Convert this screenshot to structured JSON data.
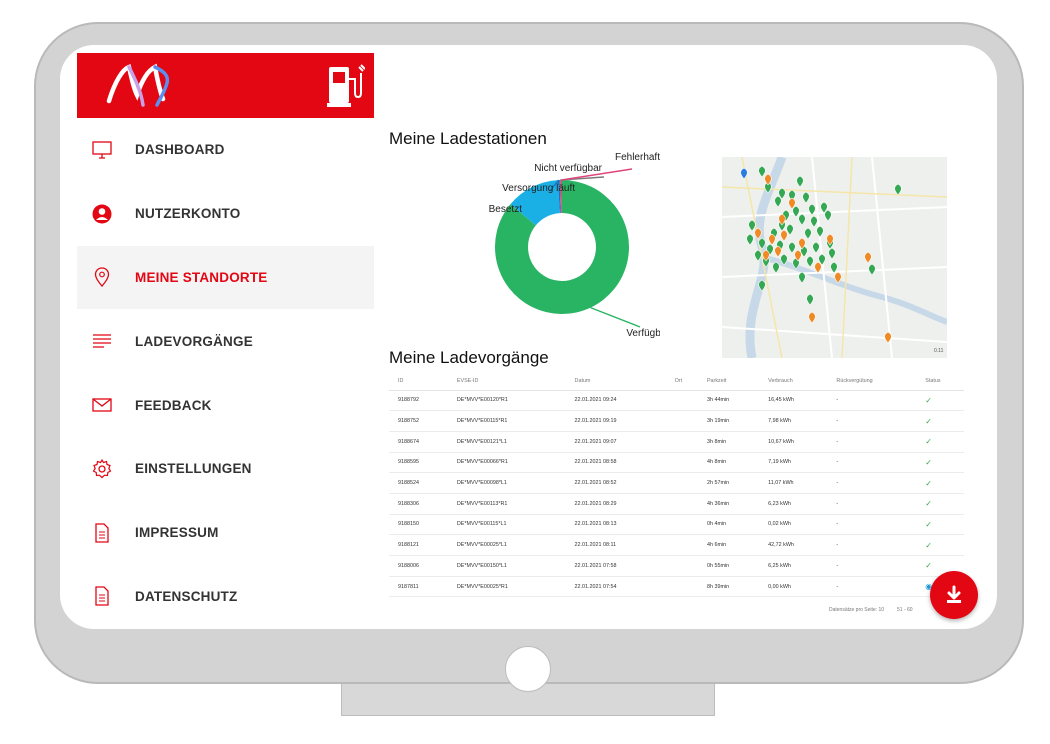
{
  "nav": [
    {
      "label": "DASHBOARD",
      "icon": "monitor-icon",
      "active": false
    },
    {
      "label": "NUTZERKONTO",
      "icon": "user-icon",
      "active": false
    },
    {
      "label": "MEINE STANDORTE",
      "icon": "location-pin-icon",
      "active": true
    },
    {
      "label": "LADEVORGÄNGE",
      "icon": "list-icon",
      "active": false
    },
    {
      "label": "FEEDBACK",
      "icon": "mail-icon",
      "active": false
    },
    {
      "label": "EINSTELLUNGEN",
      "icon": "gear-icon",
      "active": false
    },
    {
      "label": "IMPRESSUM",
      "icon": "document-icon",
      "active": false
    },
    {
      "label": "DATENSCHUTZ",
      "icon": "document-icon",
      "active": false
    }
  ],
  "stations": {
    "title": "Meine Ladestationen",
    "chart_data": {
      "type": "pie",
      "donut": true,
      "slices": [
        {
          "label": "Verfügbar",
          "value": 86,
          "color": "#28b463"
        },
        {
          "label": "Besetzt",
          "value": 13,
          "color": "#1ab0e6"
        },
        {
          "label": "Versorgung läuft",
          "value": 0.4,
          "color": "#1a73c8"
        },
        {
          "label": "Nicht verfügbar",
          "value": 0.3,
          "color": "#7a7a7a"
        },
        {
          "label": "Fehlerhaft",
          "value": 0.3,
          "color": "#e0457b"
        }
      ]
    }
  },
  "map": {
    "pins_green": 42,
    "pins_orange": 16,
    "pins_blue": 1,
    "colors": {
      "green": "#34a853",
      "orange": "#f08a24",
      "blue": "#2a7de1",
      "water": "#c7d9e8",
      "land": "#eef0ee"
    },
    "scale_label": "0.11"
  },
  "sessions": {
    "title": "Meine Ladevorgänge",
    "columns": [
      "ID",
      "EVSE-ID",
      "Datum",
      "Ort",
      "Parkzeit",
      "Verbrauch",
      "Rückvergütung",
      "Status"
    ],
    "rows": [
      {
        "id": "9188792",
        "evse": "DE*MVV*E00120*R1",
        "date": "22.01.2021 09:24",
        "place": "",
        "park": "3h 44min",
        "usage": "16,45 kWh",
        "refund": "-",
        "status": "ok"
      },
      {
        "id": "9188752",
        "evse": "DE*MVV*E00115*R1",
        "date": "22.01.2021 09:19",
        "place": "",
        "park": "3h 19min",
        "usage": "7,98 kWh",
        "refund": "-",
        "status": "ok"
      },
      {
        "id": "9188674",
        "evse": "DE*MVV*E00121*L1",
        "date": "22.01.2021 09:07",
        "place": "",
        "park": "3h 8min",
        "usage": "10,67 kWh",
        "refund": "-",
        "status": "ok"
      },
      {
        "id": "9188595",
        "evse": "DE*MVV*E00066*R1",
        "date": "22.01.2021 08:58",
        "place": "",
        "park": "4h 8min",
        "usage": "7,19 kWh",
        "refund": "-",
        "status": "ok"
      },
      {
        "id": "9188524",
        "evse": "DE*MVV*E00098*L1",
        "date": "22.01.2021 08:52",
        "place": "",
        "park": "2h 57min",
        "usage": "11,07 kWh",
        "refund": "-",
        "status": "ok"
      },
      {
        "id": "9188306",
        "evse": "DE*MVV*E00113*R1",
        "date": "22.01.2021 08:29",
        "place": "",
        "park": "4h 36min",
        "usage": "6,23 kWh",
        "refund": "-",
        "status": "ok"
      },
      {
        "id": "9188150",
        "evse": "DE*MVV*E00115*L1",
        "date": "22.01.2021 08:13",
        "place": "",
        "park": "0h 4min",
        "usage": "0,02 kWh",
        "refund": "-",
        "status": "ok"
      },
      {
        "id": "9188121",
        "evse": "DE*MVV*E00025*L1",
        "date": "22.01.2021 08:11",
        "place": "",
        "park": "4h 6min",
        "usage": "42,72 kWh",
        "refund": "-",
        "status": "ok"
      },
      {
        "id": "9188006",
        "evse": "DE*MVV*E00150*L1",
        "date": "22.01.2021 07:58",
        "place": "",
        "park": "0h 55min",
        "usage": "6,25 kWh",
        "refund": "-",
        "status": "ok"
      },
      {
        "id": "9187811",
        "evse": "DE*MVV*E00025*R1",
        "date": "22.01.2021 07:54",
        "place": "",
        "park": "8h 39min",
        "usage": "0,00 kWh",
        "refund": "-",
        "status": "active"
      }
    ],
    "footer_per_page": "Datensätze pro Seite: 10",
    "footer_range": "51 - 60"
  },
  "fab": {
    "icon": "download-icon",
    "color": "#e30613"
  },
  "brand_color": "#e30613"
}
